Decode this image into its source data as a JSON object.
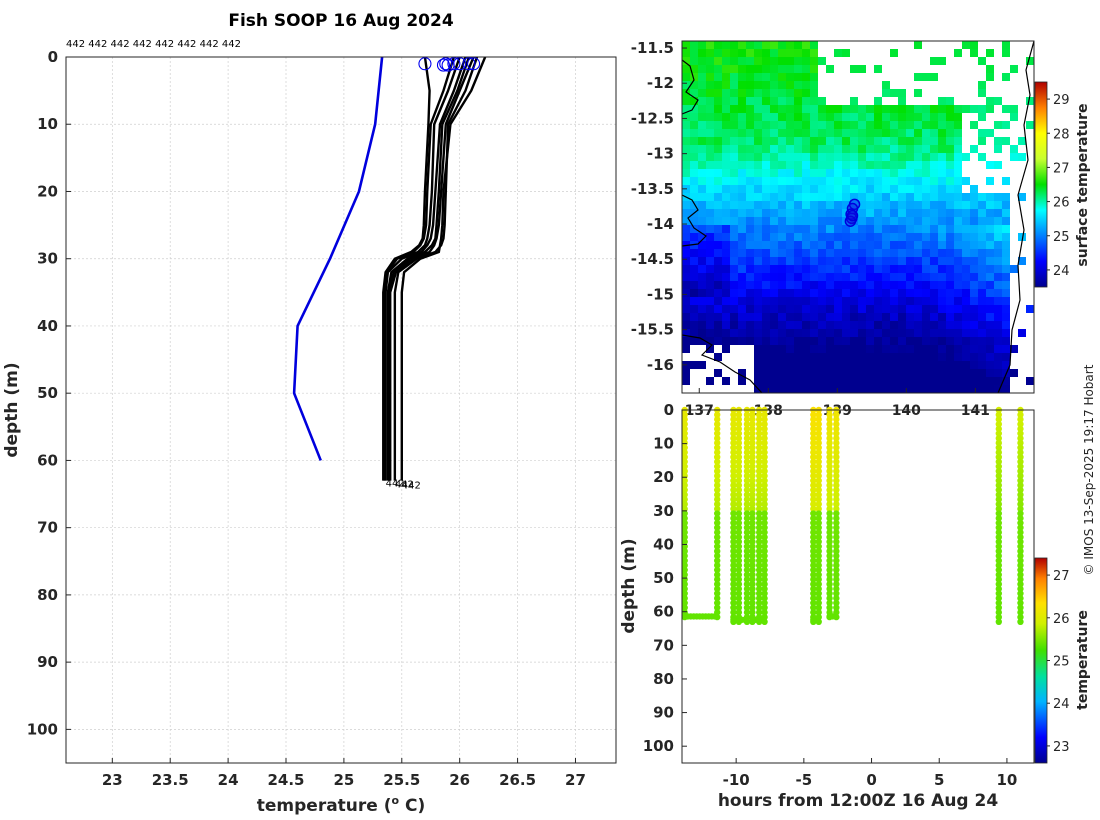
{
  "chart_data": [
    {
      "type": "line",
      "name": "temperature-depth-profiles",
      "title": "Fish SOOP 16 Aug 2024",
      "profile_ids_text": "442 442 442 442 442 442 442 442",
      "xlabel": "temperature (",
      "xlabel_sup": "o",
      "xlabel_unit": " C)",
      "ylabel": "depth (m)",
      "xlim": [
        22.6,
        27.35
      ],
      "ylim": [
        105,
        0
      ],
      "xticks": [
        23,
        23.5,
        24,
        24.5,
        25,
        25.5,
        26,
        26.5,
        27
      ],
      "xtick_labels": [
        "23",
        "23.5",
        "24",
        "24.5",
        "25",
        "25.5",
        "26",
        "26.5",
        "27"
      ],
      "yticks": [
        0,
        10,
        20,
        30,
        40,
        50,
        60,
        70,
        80,
        90,
        100
      ],
      "ytick_labels": [
        "0",
        "10",
        "20",
        "30",
        "40",
        "50",
        "60",
        "70",
        "80",
        "90",
        "100"
      ],
      "climatology": {
        "name": "climatology",
        "color": "#0000dd",
        "temperature": [
          25.33,
          25.3,
          25.27,
          25.13,
          24.88,
          24.6,
          24.57,
          24.8
        ],
        "depth": [
          0,
          5,
          10,
          20,
          30,
          40,
          50,
          60
        ]
      },
      "series": [
        {
          "name": "profile",
          "temperature": [
            26.22,
            26.1,
            25.92,
            25.86,
            25.85,
            25.84,
            25.83,
            25.82,
            25.66,
            25.52,
            25.5,
            25.5,
            25.5
          ],
          "depth": [
            0,
            5,
            10,
            20,
            25,
            27,
            28,
            29,
            30,
            32,
            35,
            50,
            63
          ]
        },
        {
          "name": "profile",
          "temperature": [
            26.12,
            26.0,
            25.88,
            25.84,
            25.82,
            25.8,
            25.78,
            25.74,
            25.6,
            25.45,
            25.4,
            25.4,
            25.4
          ],
          "depth": [
            0,
            5,
            10,
            20,
            25,
            27,
            28,
            29,
            30,
            32,
            35,
            50,
            63
          ]
        },
        {
          "name": "profile",
          "temperature": [
            26.05,
            25.95,
            25.83,
            25.79,
            25.77,
            25.75,
            25.72,
            25.67,
            25.55,
            25.41,
            25.38,
            25.38,
            25.38
          ],
          "depth": [
            0,
            5,
            10,
            20,
            25,
            27,
            28,
            29,
            30,
            32,
            35,
            50,
            63
          ]
        },
        {
          "name": "profile",
          "temperature": [
            26.0,
            25.9,
            25.78,
            25.76,
            25.74,
            25.72,
            25.7,
            25.64,
            25.5,
            25.38,
            25.36,
            25.36,
            25.36
          ],
          "depth": [
            0,
            5,
            10,
            20,
            25,
            27,
            28,
            29,
            30,
            32,
            35,
            50,
            63
          ]
        },
        {
          "name": "profile",
          "temperature": [
            25.95,
            25.86,
            25.75,
            25.72,
            25.71,
            25.69,
            25.66,
            25.6,
            25.46,
            25.37,
            25.35,
            25.35,
            25.35
          ],
          "depth": [
            0,
            5,
            10,
            20,
            25,
            27,
            28,
            29,
            30,
            32,
            35,
            50,
            63
          ]
        },
        {
          "name": "profile",
          "temperature": [
            26.15,
            26.05,
            25.9,
            25.88,
            25.87,
            25.86,
            25.84,
            25.79,
            25.63,
            25.47,
            25.44,
            25.44,
            25.44
          ],
          "depth": [
            0,
            5,
            10,
            20,
            25,
            27,
            28,
            29,
            30,
            32,
            35,
            50,
            63
          ]
        },
        {
          "name": "profile",
          "temperature": [
            25.7,
            25.74,
            25.73,
            25.7,
            25.69,
            25.68,
            25.65,
            25.58,
            25.44,
            25.36,
            25.34,
            25.34,
            25.34
          ],
          "depth": [
            0,
            5,
            10,
            20,
            25,
            27,
            28,
            29,
            30,
            32,
            35,
            50,
            63
          ]
        },
        {
          "name": "profile",
          "temperature": [
            26.08,
            25.98,
            25.85,
            25.82,
            25.8,
            25.79,
            25.76,
            25.7,
            25.57,
            25.43,
            25.39,
            25.39,
            25.39
          ],
          "depth": [
            0,
            5,
            10,
            20,
            25,
            27,
            28,
            29,
            30,
            32,
            35,
            50,
            63
          ]
        }
      ],
      "surface_markers": {
        "temperature": [
          25.7,
          25.86,
          25.88,
          25.9,
          25.95,
          26.0,
          26.08,
          26.12
        ],
        "depth": [
          1,
          1.2,
          1,
          1.2,
          1,
          1,
          1,
          1
        ]
      },
      "bottom_labels": [
        "442",
        "442",
        "442"
      ]
    },
    {
      "type": "heatmap",
      "name": "sst-map",
      "colorbar_label": "surface temperature",
      "xlim": [
        136.75,
        141.85
      ],
      "ylim": [
        -16.4,
        -11.4
      ],
      "xticks": [
        137,
        138,
        139,
        140,
        141
      ],
      "xtick_labels": [
        "137",
        "138",
        "139",
        "140",
        "141"
      ],
      "yticks": [
        -11.5,
        -12,
        -12.5,
        -13,
        -13.5,
        -14,
        -14.5,
        -15,
        -15.5,
        -16
      ],
      "ytick_labels": [
        "-11.5",
        "-12",
        "-12.5",
        "-13",
        "-13.5",
        "-14",
        "-14.5",
        "-15",
        "-15.5",
        "-16"
      ],
      "clim": [
        23.5,
        29.5
      ],
      "cticks": [
        24,
        25,
        26,
        27,
        28,
        29
      ],
      "ctick_labels": [
        "24",
        "25",
        "26",
        "27",
        "28",
        "29"
      ],
      "station_positions": {
        "lon": [
          139.25,
          139.22,
          139.2,
          139.21,
          139.19,
          139.22
        ],
        "lat": [
          -13.72,
          -13.78,
          -13.86,
          -13.92,
          -13.96,
          -13.88
        ]
      }
    },
    {
      "type": "scatter",
      "name": "depth-time-section",
      "xlabel": "hours from 12:00Z 16 Aug 24",
      "ylabel": "depth (m)",
      "colorbar_label": "temperature",
      "xlim": [
        -14,
        12
      ],
      "ylim": [
        105,
        0
      ],
      "xticks": [
        -10,
        -5,
        0,
        5,
        10
      ],
      "xtick_labels": [
        "-10",
        "-5",
        "0",
        "5",
        "10"
      ],
      "yticks": [
        0,
        10,
        20,
        30,
        40,
        50,
        60,
        70,
        80,
        90,
        100
      ],
      "ytick_labels": [
        "0",
        "10",
        "20",
        "30",
        "40",
        "50",
        "60",
        "70",
        "80",
        "90",
        "100"
      ],
      "clim": [
        22.6,
        27.4
      ],
      "cticks": [
        23,
        24,
        25,
        26,
        27
      ],
      "ctick_labels": [
        "23",
        "24",
        "25",
        "26",
        "27"
      ],
      "casts": [
        {
          "times": [
            -13.8,
            -11.4
          ],
          "max_depth": 62,
          "surface_temp": 26.1
        },
        {
          "times": [
            -10.2,
            -9.8,
            -9.2
          ],
          "max_depth": 63,
          "surface_temp": 26.1
        },
        {
          "times": [
            -8.8,
            -8.3,
            -7.9
          ],
          "max_depth": 63,
          "surface_temp": 26.1
        },
        {
          "times": [
            -4.3,
            -3.9
          ],
          "max_depth": 63,
          "surface_temp": 26.3
        },
        {
          "times": [
            -3.1,
            -2.6
          ],
          "max_depth": 62,
          "surface_temp": 26.2
        },
        {
          "times": [
            9.4
          ],
          "max_depth": 63,
          "surface_temp": 25.9
        },
        {
          "times": [
            11.0
          ],
          "max_depth": 63,
          "surface_temp": 25.9
        }
      ]
    }
  ],
  "credit": "© IMOS 13-Sep-2025 19:17 Hobart"
}
